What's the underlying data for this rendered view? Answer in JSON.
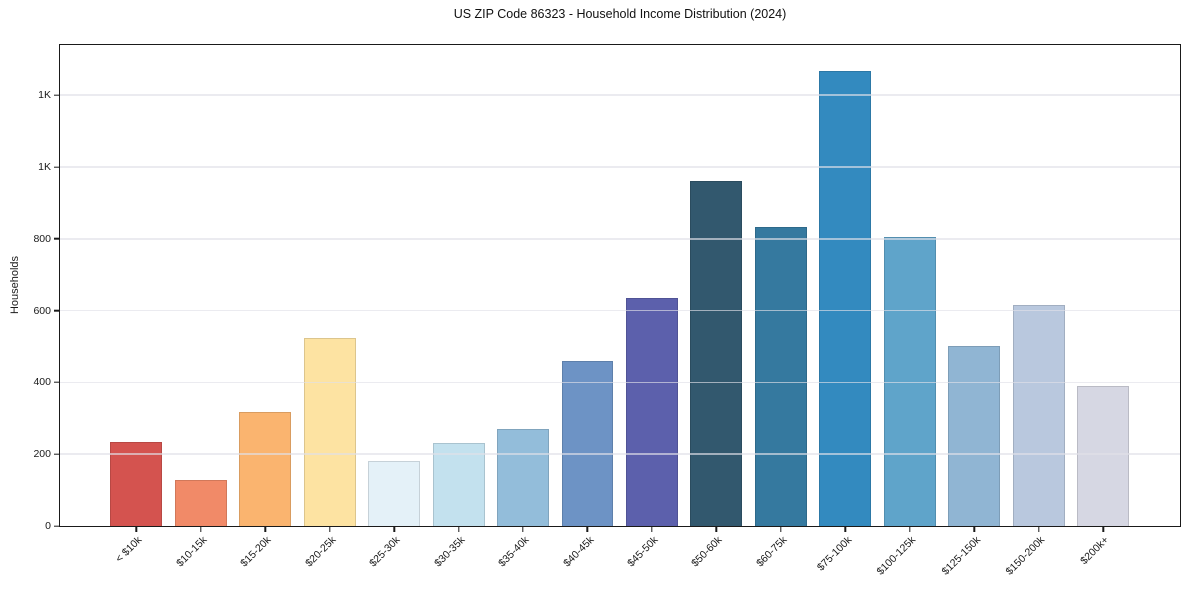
{
  "title": "US ZIP Code 86323 - Household Income Distribution (2024)",
  "y_axis_label": "Households",
  "chart_data": {
    "type": "bar",
    "title": "US ZIP Code 86323 - Household Income Distribution (2024)",
    "xlabel": "",
    "ylabel": "Households",
    "categories": [
      "< $10k",
      "$10-15k",
      "$15-20k",
      "$20-25k",
      "$25-30k",
      "$30-35k",
      "$35-40k",
      "$40-45k",
      "$45-50k",
      "$50-60k",
      "$60-75k",
      "$75-100k",
      "$100-125k",
      "$125-150k",
      "$150-200k",
      "$200k+"
    ],
    "values": [
      234,
      129,
      317,
      523,
      180,
      230,
      270,
      461,
      636,
      961,
      834,
      1268,
      806,
      502,
      615,
      391
    ],
    "bar_colors": [
      "#d4534f",
      "#f18a68",
      "#fab46f",
      "#fde3a2",
      "#e4f1f8",
      "#c3e1ee",
      "#93bdda",
      "#6d93c5",
      "#5c60ac",
      "#32586e",
      "#35799f",
      "#338abf",
      "#5fa4ca",
      "#90b5d3",
      "#b9c8de",
      "#d6d7e3"
    ],
    "y_ticks": [
      {
        "value": 0,
        "label": "0"
      },
      {
        "value": 200,
        "label": "200"
      },
      {
        "value": 400,
        "label": "400"
      },
      {
        "value": 600,
        "label": "600"
      },
      {
        "value": 800,
        "label": "800"
      },
      {
        "value": 1000,
        "label": "1K"
      },
      {
        "value": 1200,
        "label": "1K"
      }
    ],
    "ylim": [
      0,
      1340
    ],
    "grid": "horizontal",
    "legend": "none",
    "background_color": "#ffffff",
    "spine_color": "#1a1a1a",
    "gridline_color": "#e7e7ed"
  }
}
